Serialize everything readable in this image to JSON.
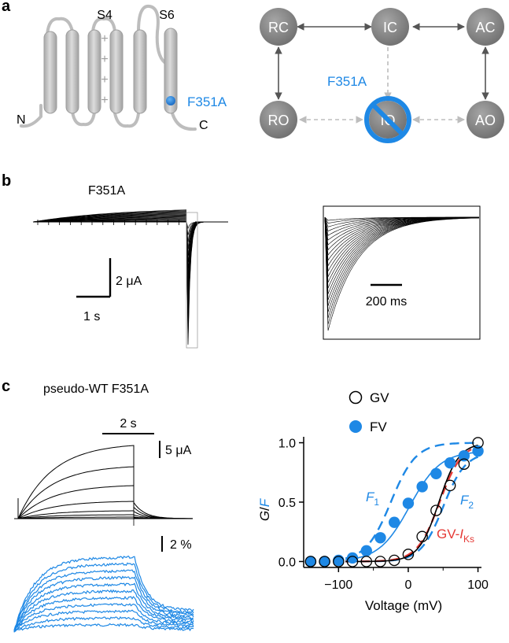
{
  "panel_labels": {
    "a": "a",
    "b": "b",
    "c": "c"
  },
  "topology": {
    "s4": "S4",
    "s6": "S6",
    "n_term": "N",
    "c_term": "C",
    "mutation": "F351A",
    "plus": "+"
  },
  "states": {
    "rc": "RC",
    "ic": "IC",
    "ac": "AC",
    "ro": "RO",
    "io": "IO",
    "ao": "AO",
    "mutation": "F351A"
  },
  "panel_b": {
    "title": "F351A",
    "current_scale": "2 μA",
    "time_scale": "1 s",
    "inset_scale": "200 ms"
  },
  "panel_c": {
    "title": "pseudo-WT F351A",
    "time_scale": "2 s",
    "current_scale": "5 μA",
    "fluor_scale": "2 %"
  },
  "colors": {
    "blue": "#1e88e5",
    "red": "#e53935",
    "gray": "#8c8c8c",
    "helix": "#c8c8c8"
  },
  "chart_data": {
    "type": "scatter",
    "xlabel": "Voltage (mV)",
    "ylabel_main": "G",
    "ylabel_sep": "/",
    "ylabel_italic": "F",
    "xlim": [
      -150,
      105
    ],
    "ylim": [
      -0.05,
      1.05
    ],
    "xticks": [
      -100,
      0,
      100
    ],
    "yticks": [
      0.0,
      0.5,
      1.0
    ],
    "xtick_labels": [
      "−100",
      "0",
      "100"
    ],
    "ytick_labels": [
      "0.0",
      "0.5",
      "1.0"
    ],
    "legend": [
      {
        "label": "GV",
        "marker": "open-circle"
      },
      {
        "label": "FV",
        "marker": "filled-circle"
      }
    ],
    "series": [
      {
        "name": "GV",
        "marker": "open-circle",
        "x": [
          -140,
          -120,
          -100,
          -80,
          -60,
          -40,
          -20,
          0,
          20,
          40,
          60,
          80,
          100
        ],
        "y": [
          0.0,
          0.0,
          0.0,
          0.0,
          0.0,
          0.0,
          0.01,
          0.06,
          0.21,
          0.43,
          0.64,
          0.82,
          1.0
        ]
      },
      {
        "name": "FV",
        "marker": "filled-circle",
        "x": [
          -140,
          -120,
          -100,
          -80,
          -60,
          -40,
          -20,
          0,
          20,
          40,
          60,
          80,
          100
        ],
        "y": [
          0.0,
          0.0,
          0.01,
          0.03,
          0.09,
          0.2,
          0.33,
          0.49,
          0.63,
          0.74,
          0.83,
          0.89,
          0.93
        ]
      }
    ],
    "curve_labels": {
      "f1": "F",
      "f1_sub": "1",
      "f2": "F",
      "f2_sub": "2",
      "gv_iks": "GV-",
      "gv_iks_italic": "I",
      "gv_iks_sub": "Ks"
    }
  }
}
